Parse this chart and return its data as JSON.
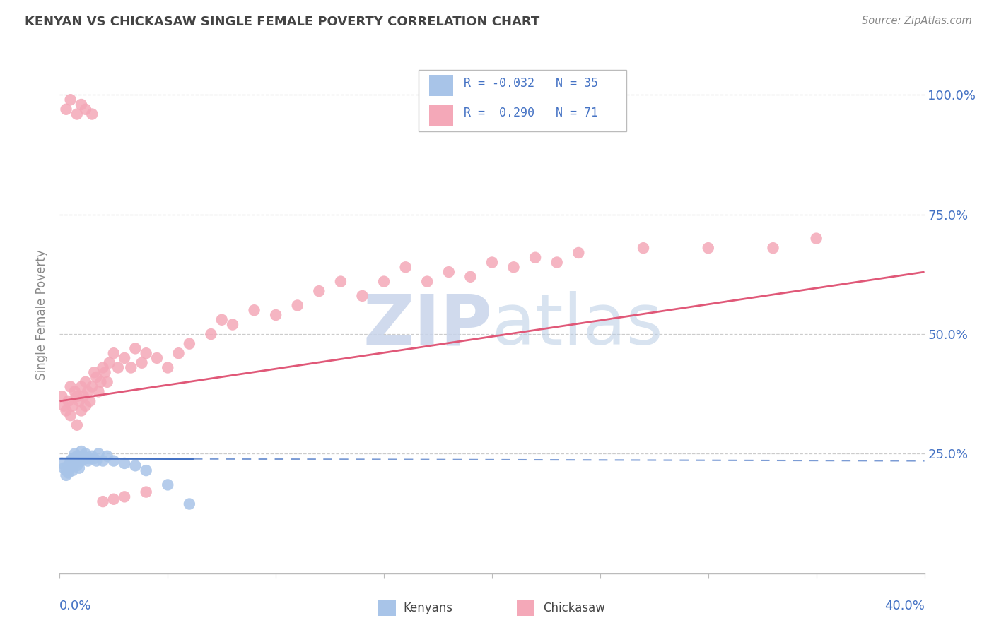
{
  "title": "KENYAN VS CHICKASAW SINGLE FEMALE POVERTY CORRELATION CHART",
  "source": "Source: ZipAtlas.com",
  "ylabel": "Single Female Poverty",
  "xlim": [
    0.0,
    0.4
  ],
  "ylim": [
    0.0,
    1.08
  ],
  "x_tick_left": "0.0%",
  "x_tick_right": "40.0%",
  "y_ticks": [
    0.0,
    0.25,
    0.5,
    0.75,
    1.0
  ],
  "y_tick_labels_right": [
    "",
    "25.0%",
    "50.0%",
    "75.0%",
    "100.0%"
  ],
  "kenyan_R": -0.032,
  "kenyan_N": 35,
  "chickasaw_R": 0.29,
  "chickasaw_N": 71,
  "kenyan_dot_color": "#a8c4e8",
  "chickasaw_dot_color": "#f4a8b8",
  "kenyan_line_color": "#4472c4",
  "chickasaw_line_color": "#e05878",
  "axis_label_color": "#4472c4",
  "title_color": "#444444",
  "source_color": "#888888",
  "grid_color": "#cccccc",
  "bg_color": "#ffffff",
  "watermark_color": "#ccd8ee",
  "kenyan_x": [
    0.001,
    0.002,
    0.003,
    0.003,
    0.004,
    0.004,
    0.005,
    0.005,
    0.006,
    0.006,
    0.007,
    0.007,
    0.008,
    0.008,
    0.009,
    0.009,
    0.01,
    0.01,
    0.011,
    0.012,
    0.012,
    0.013,
    0.014,
    0.015,
    0.016,
    0.017,
    0.018,
    0.02,
    0.022,
    0.025,
    0.03,
    0.035,
    0.04,
    0.05,
    0.06
  ],
  "kenyan_y": [
    0.23,
    0.22,
    0.215,
    0.205,
    0.225,
    0.21,
    0.235,
    0.22,
    0.24,
    0.215,
    0.23,
    0.25,
    0.245,
    0.225,
    0.24,
    0.22,
    0.255,
    0.235,
    0.245,
    0.24,
    0.25,
    0.235,
    0.24,
    0.245,
    0.24,
    0.235,
    0.25,
    0.235,
    0.245,
    0.235,
    0.23,
    0.225,
    0.215,
    0.185,
    0.145
  ],
  "chickasaw_x": [
    0.001,
    0.002,
    0.003,
    0.004,
    0.005,
    0.005,
    0.006,
    0.007,
    0.008,
    0.008,
    0.009,
    0.01,
    0.01,
    0.011,
    0.012,
    0.012,
    0.013,
    0.014,
    0.015,
    0.016,
    0.017,
    0.018,
    0.019,
    0.02,
    0.021,
    0.022,
    0.023,
    0.025,
    0.027,
    0.03,
    0.033,
    0.035,
    0.038,
    0.04,
    0.045,
    0.05,
    0.055,
    0.06,
    0.07,
    0.075,
    0.08,
    0.09,
    0.1,
    0.11,
    0.12,
    0.13,
    0.14,
    0.15,
    0.16,
    0.17,
    0.18,
    0.19,
    0.2,
    0.21,
    0.22,
    0.23,
    0.24,
    0.27,
    0.3,
    0.33,
    0.35,
    0.003,
    0.005,
    0.008,
    0.01,
    0.012,
    0.015,
    0.02,
    0.025,
    0.03,
    0.04
  ],
  "chickasaw_y": [
    0.37,
    0.35,
    0.34,
    0.36,
    0.33,
    0.39,
    0.35,
    0.38,
    0.31,
    0.37,
    0.36,
    0.34,
    0.39,
    0.37,
    0.35,
    0.4,
    0.38,
    0.36,
    0.39,
    0.42,
    0.41,
    0.38,
    0.4,
    0.43,
    0.42,
    0.4,
    0.44,
    0.46,
    0.43,
    0.45,
    0.43,
    0.47,
    0.44,
    0.46,
    0.45,
    0.43,
    0.46,
    0.48,
    0.5,
    0.53,
    0.52,
    0.55,
    0.54,
    0.56,
    0.59,
    0.61,
    0.58,
    0.61,
    0.64,
    0.61,
    0.63,
    0.62,
    0.65,
    0.64,
    0.66,
    0.65,
    0.67,
    0.68,
    0.68,
    0.68,
    0.7,
    0.97,
    0.99,
    0.96,
    0.98,
    0.97,
    0.96,
    0.15,
    0.155,
    0.16,
    0.17
  ],
  "kenyan_line_y0": 0.24,
  "kenyan_line_y1": 0.235,
  "chickasaw_line_y0": 0.36,
  "chickasaw_line_y1": 0.63
}
